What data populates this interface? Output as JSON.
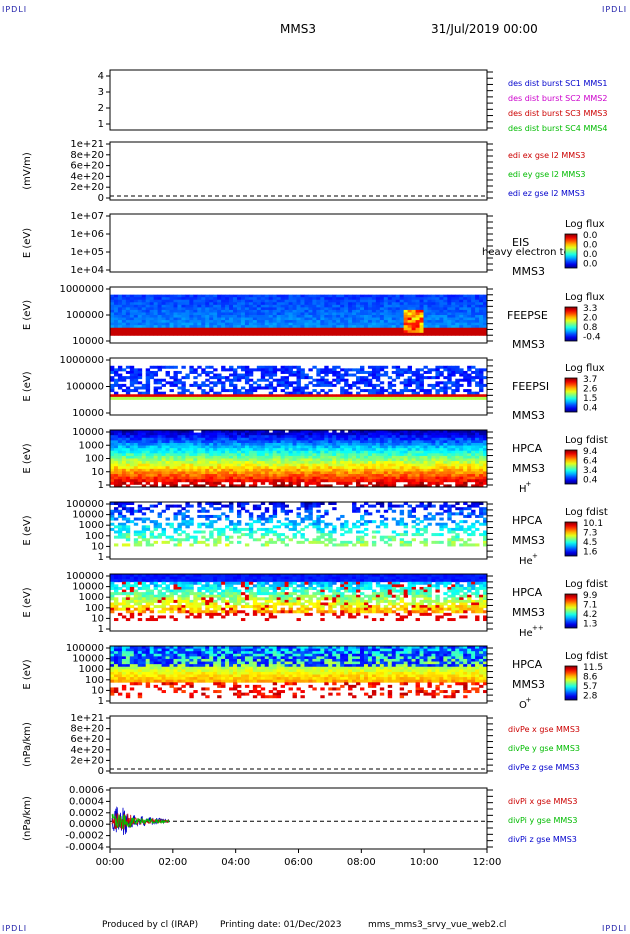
{
  "header": {
    "corner_tl": "IPDLI",
    "corner_tr": "IPDLI",
    "corner_bl": "IPDLI",
    "corner_br": "IPDLI",
    "spacecraft": "MMS3",
    "date": "31/Jul/2019 00:00"
  },
  "footer": {
    "producer": "Produced by cl (IRAP)",
    "printing_date": "Printing date: 01/Dec/2023",
    "file": "mms_mms3_srvy_vue_web2.cl"
  },
  "chart_data": {
    "type": "heatmap",
    "x_ticks": [
      "00:00",
      "02:00",
      "04:00",
      "06:00",
      "08:00",
      "10:00",
      "12:00"
    ],
    "x_range_hours": [
      0,
      12
    ],
    "panels": [
      {
        "id": "burst",
        "kind": "blank",
        "ylabel": "",
        "yticks": [
          "4",
          "3",
          "2",
          "1"
        ],
        "ylim": [
          0.5,
          4.5
        ],
        "legend": [
          {
            "text": "des dist burst SC1 MMS1",
            "color": "#0000cc"
          },
          {
            "text": "des dist burst SC2 MMS2",
            "color": "#cc00cc"
          },
          {
            "text": "des dist burst SC3 MMS3",
            "color": "#cc0000"
          },
          {
            "text": "des dist burst SC4 MMS4",
            "color": "#00bb00"
          }
        ]
      },
      {
        "id": "edi",
        "kind": "dashed",
        "ylabel": "(mV/m)",
        "yticks": [
          "1e+21",
          "8e+20",
          "6e+20",
          "4e+20",
          "2e+20",
          "0"
        ],
        "ylim": [
          0,
          1e+21
        ],
        "legend": [
          {
            "text": "edi ex gse l2 MMS3",
            "color": "#cc0000"
          },
          {
            "text": "edi ey gse l2 MMS3",
            "color": "#00bb00"
          },
          {
            "text": "edi ez gse l2 MMS3",
            "color": "#0000cc"
          }
        ]
      },
      {
        "id": "eis",
        "kind": "blank",
        "ylabel": "E (eV)",
        "yticks": [
          "1e+07",
          "1e+06",
          "1e+05",
          "1e+04"
        ],
        "ylim": [
          10000,
          10000000
        ],
        "log": true,
        "right_labels": [
          "EIS",
          "MMS3"
        ],
        "overlay_text": "heavy electron to",
        "colorbar": {
          "title": "Log flux",
          "ticks": [
            "0.0",
            "0.0",
            "0.0",
            "0.0"
          ]
        }
      },
      {
        "id": "feepse",
        "kind": "spectrogram",
        "ylabel": "E (eV)",
        "yticks": [
          "1000000",
          "100000",
          "10000"
        ],
        "ylim": [
          10000,
          1000000
        ],
        "log": true,
        "right_labels": [
          "FEEPSE",
          "MMS3"
        ],
        "colorbar": {
          "title": "Log flux",
          "ticks": [
            "3.3",
            "2.0",
            "0.8",
            "-0.4"
          ]
        }
      },
      {
        "id": "feepsi",
        "kind": "spectrogram",
        "ylabel": "E (eV)",
        "yticks": [
          "1000000",
          "100000",
          "10000"
        ],
        "ylim": [
          10000,
          1000000
        ],
        "log": true,
        "right_labels": [
          "FEEPSI",
          "MMS3"
        ],
        "colorbar": {
          "title": "Log flux",
          "ticks": [
            "3.7",
            "2.6",
            "1.5",
            "0.4"
          ]
        }
      },
      {
        "id": "hpca_h",
        "kind": "spectrogram",
        "ylabel": "E (eV)",
        "yticks": [
          "10000",
          "1000",
          "100",
          "10",
          "1"
        ],
        "ylim": [
          1,
          30000
        ],
        "log": true,
        "right_labels": [
          "HPCA",
          "MMS3"
        ],
        "species": "H",
        "charge": "+",
        "colorbar": {
          "title": "Log fdist",
          "ticks": [
            "9.4",
            "6.4",
            "3.4",
            "0.4"
          ]
        }
      },
      {
        "id": "hpca_he1",
        "kind": "spectrogram",
        "ylabel": "E (eV)",
        "yticks": [
          "100000",
          "10000",
          "1000",
          "100",
          "10",
          "1"
        ],
        "ylim": [
          1,
          100000
        ],
        "log": true,
        "right_labels": [
          "HPCA",
          "MMS3"
        ],
        "species": "He",
        "charge": "+",
        "colorbar": {
          "title": "Log fdist",
          "ticks": [
            "10.1",
            "7.3",
            "4.5",
            "1.6"
          ]
        }
      },
      {
        "id": "hpca_he2",
        "kind": "spectrogram",
        "ylabel": "E (eV)",
        "yticks": [
          "100000",
          "10000",
          "1000",
          "100",
          "10",
          "1"
        ],
        "ylim": [
          1,
          100000
        ],
        "log": true,
        "right_labels": [
          "HPCA",
          "MMS3"
        ],
        "species": "He",
        "charge": "++",
        "colorbar": {
          "title": "Log fdist",
          "ticks": [
            "9.9",
            "7.1",
            "4.2",
            "1.3"
          ]
        }
      },
      {
        "id": "hpca_o",
        "kind": "spectrogram",
        "ylabel": "E (eV)",
        "yticks": [
          "100000",
          "10000",
          "1000",
          "100",
          "10",
          "1"
        ],
        "ylim": [
          1,
          100000
        ],
        "log": true,
        "right_labels": [
          "HPCA",
          "MMS3"
        ],
        "species": "O",
        "charge": "+",
        "colorbar": {
          "title": "Log fdist",
          "ticks": [
            "11.5",
            "8.6",
            "5.7",
            "2.8"
          ]
        }
      },
      {
        "id": "divpe",
        "kind": "dashed",
        "ylabel": "(nPa/km)",
        "yticks": [
          "1e+21",
          "8e+20",
          "6e+20",
          "4e+20",
          "2e+20",
          "0"
        ],
        "ylim": [
          0,
          1e+21
        ],
        "legend": [
          {
            "text": "divPe x gse MMS3",
            "color": "#cc0000"
          },
          {
            "text": "divPe y gse MMS3",
            "color": "#00bb00"
          },
          {
            "text": "divPe z gse MMS3",
            "color": "#0000cc"
          }
        ]
      },
      {
        "id": "divpi",
        "kind": "lines",
        "ylabel": "(nPa/km)",
        "yticks": [
          "0.0006",
          "0.0004",
          "0.0002",
          "0.0000",
          "-0.0002",
          "-0.0004"
        ],
        "ylim": [
          -0.0005,
          0.0006
        ],
        "legend": [
          {
            "text": "divPi x gse MMS3",
            "color": "#cc0000"
          },
          {
            "text": "divPi y gse MMS3",
            "color": "#00bb00"
          },
          {
            "text": "divPi z gse MMS3",
            "color": "#0000cc"
          }
        ]
      }
    ]
  }
}
